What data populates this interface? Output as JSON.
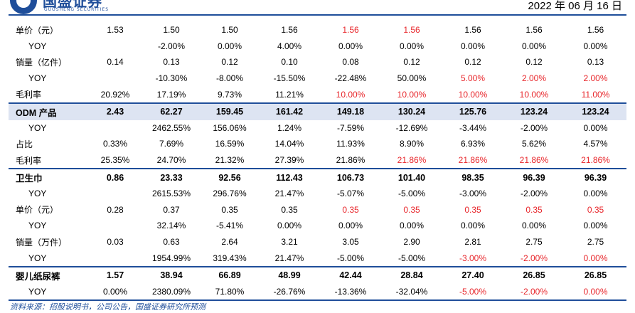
{
  "header": {
    "logo_cn": "国盛证券",
    "logo_en": "GUOSHENG SECURITIES",
    "date": "2022 年 06 月 16 日"
  },
  "colors": {
    "brand": "#1f4e9a",
    "highlight_row": "#dde4f2",
    "forecast_red": "#e8262b"
  },
  "table": {
    "rows": [
      {
        "label": "单价（元）",
        "cells": [
          {
            "v": "1.53"
          },
          {
            "v": "1.50"
          },
          {
            "v": "1.50"
          },
          {
            "v": "1.56"
          },
          {
            "v": "1.56",
            "red": true
          },
          {
            "v": "1.56",
            "red": true
          },
          {
            "v": "1.56"
          },
          {
            "v": "1.56"
          },
          {
            "v": "1.56"
          }
        ]
      },
      {
        "label": "YOY",
        "yoy": true,
        "cells": [
          {
            "v": ""
          },
          {
            "v": "-2.00%"
          },
          {
            "v": "0.00%"
          },
          {
            "v": "4.00%"
          },
          {
            "v": "0.00%"
          },
          {
            "v": "0.00%"
          },
          {
            "v": "0.00%"
          },
          {
            "v": "0.00%"
          },
          {
            "v": "0.00%"
          }
        ]
      },
      {
        "label": "销量（亿件）",
        "cells": [
          {
            "v": "0.14"
          },
          {
            "v": "0.13"
          },
          {
            "v": "0.12"
          },
          {
            "v": "0.10"
          },
          {
            "v": "0.08"
          },
          {
            "v": "0.12"
          },
          {
            "v": "0.12"
          },
          {
            "v": "0.12"
          },
          {
            "v": "0.13"
          }
        ]
      },
      {
        "label": "YOY",
        "yoy": true,
        "cells": [
          {
            "v": ""
          },
          {
            "v": "-10.30%"
          },
          {
            "v": "-8.00%"
          },
          {
            "v": "-15.50%"
          },
          {
            "v": "-22.48%"
          },
          {
            "v": "50.00%"
          },
          {
            "v": "5.00%",
            "red": true
          },
          {
            "v": "2.00%",
            "red": true
          },
          {
            "v": "2.00%",
            "red": true
          }
        ]
      },
      {
        "label": "毛利率",
        "sep": true,
        "cells": [
          {
            "v": "20.92%"
          },
          {
            "v": "17.19%"
          },
          {
            "v": "9.73%"
          },
          {
            "v": "11.21%"
          },
          {
            "v": "10.00%",
            "red": true
          },
          {
            "v": "10.00%",
            "red": true
          },
          {
            "v": "10.00%",
            "red": true
          },
          {
            "v": "10.00%",
            "red": true
          },
          {
            "v": "11.00%",
            "red": true
          }
        ]
      },
      {
        "label": "ODM 产品",
        "bold": true,
        "hl": true,
        "cells": [
          {
            "v": "2.43"
          },
          {
            "v": "62.27"
          },
          {
            "v": "159.45"
          },
          {
            "v": "161.42"
          },
          {
            "v": "149.18"
          },
          {
            "v": "130.24"
          },
          {
            "v": "125.76"
          },
          {
            "v": "123.24"
          },
          {
            "v": "123.24"
          }
        ]
      },
      {
        "label": "YOY",
        "yoy": true,
        "cells": [
          {
            "v": ""
          },
          {
            "v": "2462.55%"
          },
          {
            "v": "156.06%"
          },
          {
            "v": "1.24%"
          },
          {
            "v": "-7.59%"
          },
          {
            "v": "-12.69%"
          },
          {
            "v": "-3.44%"
          },
          {
            "v": "-2.00%"
          },
          {
            "v": "0.00%"
          }
        ]
      },
      {
        "label": "占比",
        "cells": [
          {
            "v": "0.33%"
          },
          {
            "v": "7.69%"
          },
          {
            "v": "16.59%"
          },
          {
            "v": "14.04%"
          },
          {
            "v": "11.93%"
          },
          {
            "v": "8.90%"
          },
          {
            "v": "6.93%"
          },
          {
            "v": "5.62%"
          },
          {
            "v": "4.57%"
          }
        ]
      },
      {
        "label": "毛利率",
        "sep": true,
        "cells": [
          {
            "v": "25.35%"
          },
          {
            "v": "24.70%"
          },
          {
            "v": "21.32%"
          },
          {
            "v": "27.39%"
          },
          {
            "v": "21.86%"
          },
          {
            "v": "21.86%",
            "red": true
          },
          {
            "v": "21.86%",
            "red": true
          },
          {
            "v": "21.86%",
            "red": true
          },
          {
            "v": "21.86%",
            "red": true
          }
        ]
      },
      {
        "label": "卫生巾",
        "bold": true,
        "cells": [
          {
            "v": "0.86"
          },
          {
            "v": "23.33"
          },
          {
            "v": "92.56"
          },
          {
            "v": "112.43"
          },
          {
            "v": "106.73"
          },
          {
            "v": "101.40"
          },
          {
            "v": "98.35"
          },
          {
            "v": "96.39"
          },
          {
            "v": "96.39"
          }
        ]
      },
      {
        "label": "YOY",
        "yoy": true,
        "cells": [
          {
            "v": ""
          },
          {
            "v": "2615.53%"
          },
          {
            "v": "296.76%"
          },
          {
            "v": "21.47%"
          },
          {
            "v": "-5.07%"
          },
          {
            "v": "-5.00%"
          },
          {
            "v": "-3.00%"
          },
          {
            "v": "-2.00%"
          },
          {
            "v": "0.00%"
          }
        ]
      },
      {
        "label": "单价（元）",
        "cells": [
          {
            "v": "0.28"
          },
          {
            "v": "0.37"
          },
          {
            "v": "0.35"
          },
          {
            "v": "0.35"
          },
          {
            "v": "0.35",
            "red": true
          },
          {
            "v": "0.35",
            "red": true
          },
          {
            "v": "0.35",
            "red": true
          },
          {
            "v": "0.35",
            "red": true
          },
          {
            "v": "0.35",
            "red": true
          }
        ]
      },
      {
        "label": "YOY",
        "yoy": true,
        "cells": [
          {
            "v": ""
          },
          {
            "v": "32.14%"
          },
          {
            "v": "-5.41%"
          },
          {
            "v": "0.00%"
          },
          {
            "v": "0.00%"
          },
          {
            "v": "0.00%"
          },
          {
            "v": "0.00%"
          },
          {
            "v": "0.00%"
          },
          {
            "v": "0.00%"
          }
        ]
      },
      {
        "label": "销量（万件）",
        "cells": [
          {
            "v": "0.03"
          },
          {
            "v": "0.63"
          },
          {
            "v": "2.64"
          },
          {
            "v": "3.21"
          },
          {
            "v": "3.05"
          },
          {
            "v": "2.90"
          },
          {
            "v": "2.81"
          },
          {
            "v": "2.75"
          },
          {
            "v": "2.75"
          }
        ]
      },
      {
        "label": "YOY",
        "yoy": true,
        "sep": true,
        "cells": [
          {
            "v": ""
          },
          {
            "v": "1954.99%"
          },
          {
            "v": "319.43%"
          },
          {
            "v": "21.47%"
          },
          {
            "v": "-5.00%"
          },
          {
            "v": "-5.00%"
          },
          {
            "v": "-3.00%",
            "red": true
          },
          {
            "v": "-2.00%",
            "red": true
          },
          {
            "v": "0.00%",
            "red": true
          }
        ]
      },
      {
        "label": "婴儿纸尿裤",
        "bold": true,
        "cells": [
          {
            "v": "1.57"
          },
          {
            "v": "38.94"
          },
          {
            "v": "66.89"
          },
          {
            "v": "48.99"
          },
          {
            "v": "42.44"
          },
          {
            "v": "28.84"
          },
          {
            "v": "27.40"
          },
          {
            "v": "26.85"
          },
          {
            "v": "26.85"
          }
        ]
      },
      {
        "label": "YOY",
        "yoy": true,
        "cells": [
          {
            "v": "0.00%"
          },
          {
            "v": "2380.09%"
          },
          {
            "v": "71.80%"
          },
          {
            "v": "-26.76%"
          },
          {
            "v": "-13.36%"
          },
          {
            "v": "-32.04%"
          },
          {
            "v": "-5.00%",
            "red": true
          },
          {
            "v": "-2.00%",
            "red": true
          },
          {
            "v": "0.00%",
            "red": true
          }
        ]
      }
    ]
  },
  "footer": {
    "source": "资料来源：招股说明书，公司公告，国盛证券研究所预测"
  }
}
